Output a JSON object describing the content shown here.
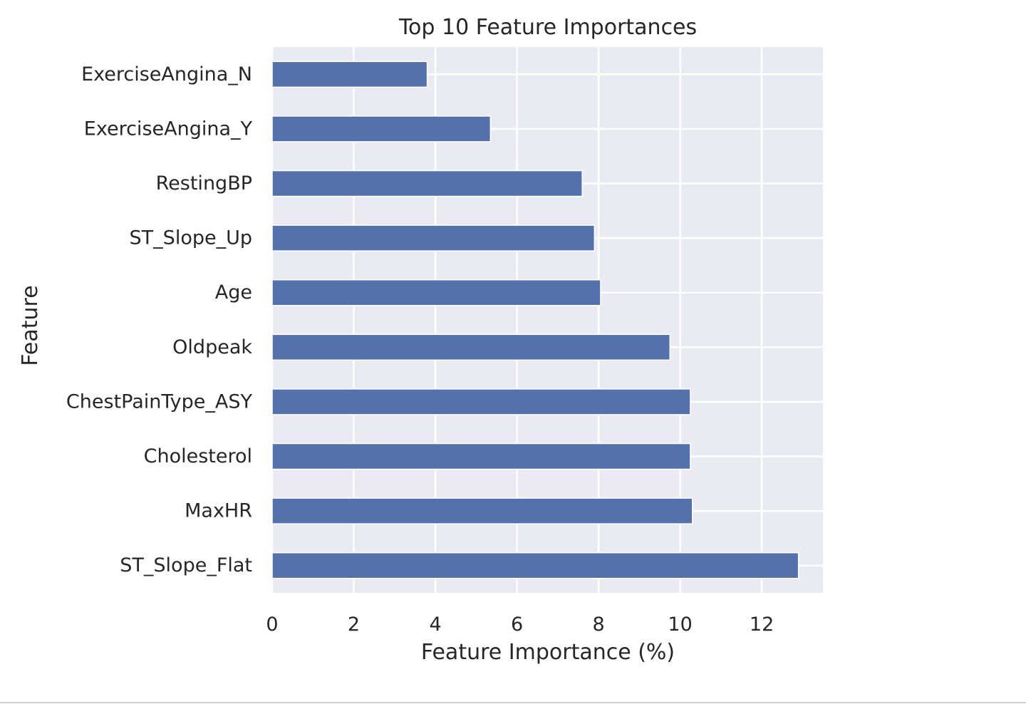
{
  "chart_data": {
    "type": "bar",
    "orientation": "horizontal",
    "title": "Top 10 Feature Importances",
    "xlabel": "Feature Importance (%)",
    "ylabel": "Feature",
    "categories": [
      "ExerciseAngina_N",
      "ExerciseAngina_Y",
      "RestingBP",
      "ST_Slope_Up",
      "Age",
      "Oldpeak",
      "ChestPainType_ASY",
      "Cholesterol",
      "MaxHR",
      "ST_Slope_Flat"
    ],
    "values": [
      3.8,
      5.35,
      7.6,
      7.9,
      8.05,
      9.75,
      10.25,
      10.25,
      10.3,
      12.9
    ],
    "xlim": [
      0,
      13.5
    ],
    "xticks": [
      0,
      2,
      4,
      6,
      8,
      10,
      12
    ],
    "xtick_labels": [
      "0",
      "2",
      "4",
      "6",
      "8",
      "10",
      "12"
    ],
    "grid": true,
    "colors": {
      "bar": "#5471ab",
      "plot_background": "#eaeaf2",
      "grid": "#ffffff",
      "text": "#262626"
    }
  }
}
